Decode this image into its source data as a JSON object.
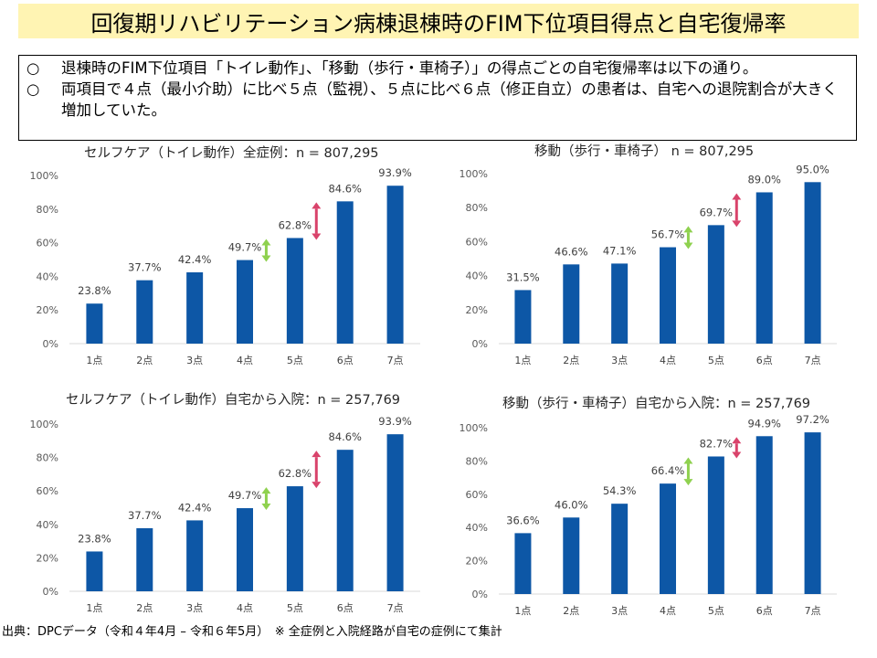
{
  "title": "回復期リハビリテーション病棟退棟時のFIM下位項目得点と自宅復帰率",
  "summary": [
    {
      "bullet": "○",
      "text": "退棟時のFIM下位項目「トイレ動作」、「移動（歩行・車椅子）」の得点ごとの自宅復帰率は以下の通り。"
    },
    {
      "bullet": "○",
      "text": "両項目で４点（最小介助）に比べ５点（監視）、５点に比べ６点（修正自立）の患者は、自宅への退院割合が大きく増加していた。"
    }
  ],
  "source": "出典：DPCデータ（令和４年4月 – 令和６年5月）　※ 全症例と入院経路が自宅の症例にて集計",
  "colors": {
    "bar": "#0d57a6",
    "green_arrow": "#8fd14f",
    "red_arrow": "#d9436b",
    "title_bg": "#fff4b3"
  },
  "chart_data": [
    {
      "type": "bar",
      "title": "セルフケア（トイレ動作）全症例：n = 807,295",
      "categories": [
        "1点",
        "2点",
        "3点",
        "4点",
        "5点",
        "6点",
        "7点"
      ],
      "values": [
        23.8,
        37.7,
        42.4,
        49.7,
        62.8,
        84.6,
        93.9
      ],
      "labels": [
        "23.8%",
        "37.7%",
        "42.4%",
        "49.7%",
        "62.8%",
        "84.6%",
        "93.9%"
      ],
      "yticks": [
        "0%",
        "20%",
        "40%",
        "60%",
        "80%",
        "100%"
      ],
      "ylim": [
        0,
        100
      ],
      "arrows": [
        {
          "after_category": "4点",
          "color": "green"
        },
        {
          "after_category": "5点",
          "color": "red"
        }
      ]
    },
    {
      "type": "bar",
      "title": "移動（歩行・車椅子） n = 807,295",
      "categories": [
        "1点",
        "2点",
        "3点",
        "4点",
        "5点",
        "6点",
        "7点"
      ],
      "values": [
        31.5,
        46.6,
        47.1,
        56.7,
        69.7,
        89.0,
        95.0
      ],
      "labels": [
        "31.5%",
        "46.6%",
        "47.1%",
        "56.7%",
        "69.7%",
        "89.0%",
        "95.0%"
      ],
      "yticks": [
        "0%",
        "20%",
        "40%",
        "60%",
        "80%",
        "100%"
      ],
      "ylim": [
        0,
        100
      ],
      "arrows": [
        {
          "after_category": "4点",
          "color": "green"
        },
        {
          "after_category": "5点",
          "color": "red"
        }
      ]
    },
    {
      "type": "bar",
      "title": "セルフケア（トイレ動作）自宅から入院：n = 257,769",
      "categories": [
        "1点",
        "2点",
        "3点",
        "4点",
        "5点",
        "6点",
        "7点"
      ],
      "values": [
        23.8,
        37.7,
        42.4,
        49.7,
        62.8,
        84.6,
        93.9
      ],
      "labels": [
        "23.8%",
        "37.7%",
        "42.4%",
        "49.7%",
        "62.8%",
        "84.6%",
        "93.9%"
      ],
      "yticks": [
        "0%",
        "20%",
        "40%",
        "60%",
        "80%",
        "100%"
      ],
      "ylim": [
        0,
        100
      ],
      "arrows": [
        {
          "after_category": "4点",
          "color": "green"
        },
        {
          "after_category": "5点",
          "color": "red"
        }
      ]
    },
    {
      "type": "bar",
      "title": "移動（歩行・車椅子）自宅から入院：n = 257,769",
      "categories": [
        "1点",
        "2点",
        "3点",
        "4点",
        "5点",
        "6点",
        "7点"
      ],
      "values": [
        36.6,
        46.0,
        54.3,
        66.4,
        82.7,
        94.9,
        97.2
      ],
      "labels": [
        "36.6%",
        "46.0%",
        "54.3%",
        "66.4%",
        "82.7%",
        "94.9%",
        "97.2%"
      ],
      "yticks": [
        "0%",
        "20%",
        "40%",
        "60%",
        "80%",
        "100%"
      ],
      "ylim": [
        0,
        100
      ],
      "arrows": [
        {
          "after_category": "4点",
          "color": "green"
        },
        {
          "after_category": "5点",
          "color": "red"
        }
      ]
    }
  ]
}
